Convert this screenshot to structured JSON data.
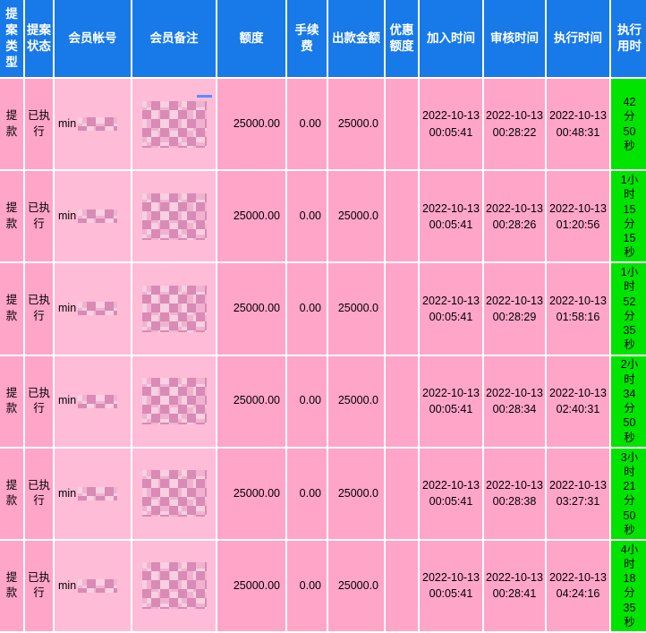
{
  "palette": {
    "header_bg": "#1879e8",
    "border": "#ffffff",
    "row_pink": "#ffa5c8",
    "cell_light_pink": "#ffbcd6",
    "duration_green": "#00e400",
    "mosaic_dark": "#d98ab5",
    "mosaic_mid": "#efb3cf",
    "mosaic_light": "#f7d0e1",
    "mark_blue": "#5b8dff"
  },
  "columns": [
    {
      "key": "type",
      "label": "提案类型"
    },
    {
      "key": "status",
      "label": "提案状态"
    },
    {
      "key": "account",
      "label": "会员帐号"
    },
    {
      "key": "remark",
      "label": "会员备注"
    },
    {
      "key": "amount",
      "label": "额度"
    },
    {
      "key": "fee",
      "label": "手续费"
    },
    {
      "key": "payout",
      "label": "出款金额"
    },
    {
      "key": "bonus",
      "label": "优惠额度"
    },
    {
      "key": "join",
      "label": "加入时间"
    },
    {
      "key": "review",
      "label": "审核时间"
    },
    {
      "key": "exec",
      "label": "执行时间"
    },
    {
      "key": "duration",
      "label": "执行用时"
    }
  ],
  "rows": [
    {
      "type": "提款",
      "status": "已执行",
      "account_prefix": "min",
      "amount": "25000.00",
      "fee": "0.00",
      "payout": "25000.0",
      "bonus": "",
      "join_time": "2022-10-13 00:05:41",
      "review_time": "2022-10-13 00:28:22",
      "exec_time": "2022-10-13 00:48:31",
      "duration": "42分50秒"
    },
    {
      "type": "提款",
      "status": "已执行",
      "account_prefix": "min",
      "amount": "25000.00",
      "fee": "0.00",
      "payout": "25000.0",
      "bonus": "",
      "join_time": "2022-10-13 00:05:41",
      "review_time": "2022-10-13 00:28:26",
      "exec_time": "2022-10-13 01:20:56",
      "duration": "1小时15分15秒"
    },
    {
      "type": "提款",
      "status": "已执行",
      "account_prefix": "min",
      "amount": "25000.00",
      "fee": "0.00",
      "payout": "25000.0",
      "bonus": "",
      "join_time": "2022-10-13 00:05:41",
      "review_time": "2022-10-13 00:28:29",
      "exec_time": "2022-10-13 01:58:16",
      "duration": "1小时52分35秒"
    },
    {
      "type": "提款",
      "status": "已执行",
      "account_prefix": "min",
      "amount": "25000.00",
      "fee": "0.00",
      "payout": "25000.0",
      "bonus": "",
      "join_time": "2022-10-13 00:05:41",
      "review_time": "2022-10-13 00:28:34",
      "exec_time": "2022-10-13 02:40:31",
      "duration": "2小时34分50秒"
    },
    {
      "type": "提款",
      "status": "已执行",
      "account_prefix": "min",
      "amount": "25000.00",
      "fee": "0.00",
      "payout": "25000.0",
      "bonus": "",
      "join_time": "2022-10-13 00:05:41",
      "review_time": "2022-10-13 00:28:38",
      "exec_time": "2022-10-13 03:27:31",
      "duration": "3小时21分50秒"
    },
    {
      "type": "提款",
      "status": "已执行",
      "account_prefix": "min",
      "amount": "25000.00",
      "fee": "0.00",
      "payout": "25000.0",
      "bonus": "",
      "join_time": "2022-10-13 00:05:41",
      "review_time": "2022-10-13 00:28:41",
      "exec_time": "2022-10-13 04:24:16",
      "duration": "4小时18分35秒"
    }
  ]
}
